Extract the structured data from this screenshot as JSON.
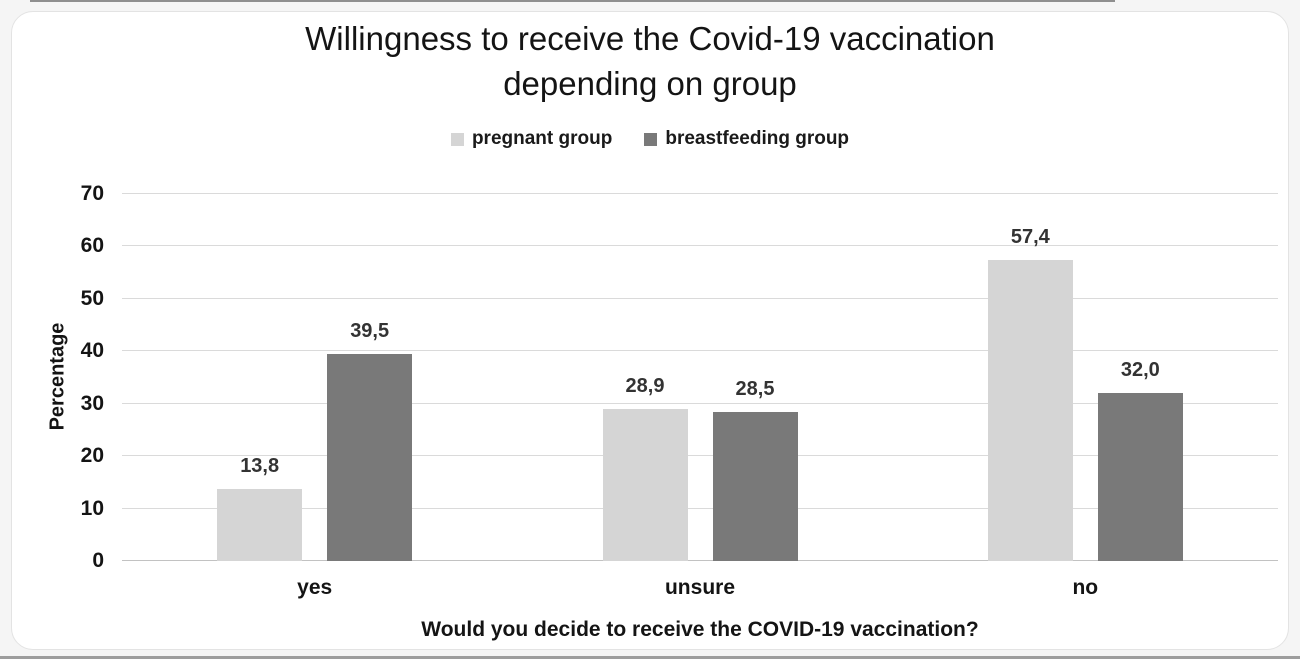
{
  "figure": {
    "title_line1": "Willingness to receive the Covid-19 vaccination",
    "title_line2": "depending on group"
  },
  "chart_data": {
    "type": "bar",
    "title": "Willingness to receive the Covid-19 vaccination depending on group",
    "categories": [
      "yes",
      "unsure",
      "no"
    ],
    "series": [
      {
        "name": "pregnant group",
        "color": "#d5d5d5",
        "values": [
          13.8,
          28.9,
          57.4
        ],
        "labels": [
          "13,8",
          "28,9",
          "57,4"
        ]
      },
      {
        "name": "breastfeeding group",
        "color": "#797979",
        "values": [
          39.5,
          28.5,
          32.0
        ],
        "labels": [
          "39,5",
          "28,5",
          "32,0"
        ]
      }
    ],
    "xlabel": "Would you decide to receive the COVID-19 vaccination?",
    "ylabel": "Percentage",
    "ylim": [
      0,
      70
    ],
    "yticks": [
      0,
      10,
      20,
      30,
      40,
      50,
      60,
      70
    ],
    "grid": true,
    "legend_position": "top",
    "value_format": "comma-decimal"
  }
}
